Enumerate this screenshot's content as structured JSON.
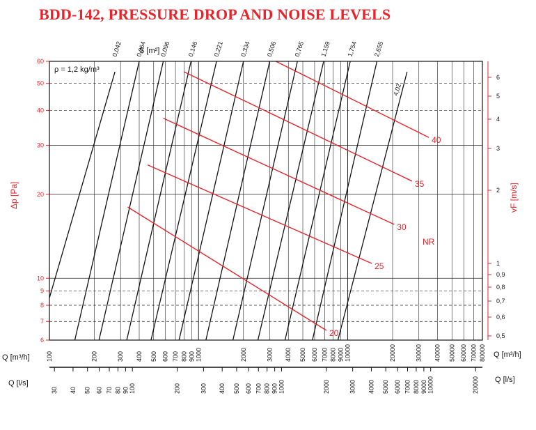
{
  "title": "BDD-142, PRESSURE DROP AND NOISE LEVELS",
  "density_note": "ρ = 1,2 kg/m³",
  "chart_data": {
    "type": "line",
    "scale": "log-log",
    "grid": true,
    "x_axis": {
      "unit_label": "Q [m³/h]",
      "range": [
        100,
        80000
      ],
      "ticks": [
        "100",
        "200",
        "300",
        "400",
        "500",
        "600",
        "700",
        "800",
        "900",
        "1000",
        "2000",
        "3000",
        "4000",
        "5000",
        "6000",
        "7000",
        "8000",
        "9000",
        "10000",
        "20000",
        "30000",
        "40000",
        "50000",
        "60000",
        "70000",
        "80000"
      ]
    },
    "x_axis_secondary": {
      "unit_label": "Q [l/s]",
      "ticks": [
        "30",
        "40",
        "50",
        "60",
        "70",
        "80",
        "90",
        "100",
        "200",
        "300",
        "400",
        "500",
        "600",
        "700",
        "800",
        "900",
        "1000",
        "2000",
        "3000",
        "4000",
        "5000",
        "6000",
        "7000",
        "8000",
        "9000",
        "10000",
        "20000"
      ]
    },
    "y_axis": {
      "label": "Δp [Pa]",
      "range": [
        6,
        60
      ],
      "ticks": [
        "6",
        "7",
        "8",
        "9",
        "10",
        "20",
        "30",
        "40",
        "50",
        "60"
      ]
    },
    "y_axis_right": {
      "label": "vF [m/s]",
      "ticks": [
        "0,5",
        "0,6",
        "0,7",
        "0,8",
        "0,9",
        "1",
        "2",
        "3",
        "4",
        "5",
        "6"
      ]
    },
    "s_axis": {
      "label": "S [m²]"
    },
    "series": [
      {
        "name": "0,042",
        "points": [
          [
            100,
            8.5
          ],
          [
            275,
            55
          ]
        ]
      },
      {
        "name": "0,064",
        "points": [
          [
            148,
            6
          ],
          [
            400,
            60
          ]
        ]
      },
      {
        "name": "0,096",
        "points": [
          [
            215,
            6
          ],
          [
            580,
            60
          ]
        ]
      },
      {
        "name": "0,146",
        "points": [
          [
            330,
            6
          ],
          [
            890,
            60
          ]
        ]
      },
      {
        "name": "0,221",
        "points": [
          [
            480,
            6
          ],
          [
            1320,
            60
          ]
        ]
      },
      {
        "name": "0,334",
        "points": [
          [
            740,
            6
          ],
          [
            2000,
            60
          ]
        ]
      },
      {
        "name": "0,506",
        "points": [
          [
            1120,
            6
          ],
          [
            3000,
            60
          ]
        ]
      },
      {
        "name": "0,765",
        "points": [
          [
            1700,
            6
          ],
          [
            4600,
            60
          ]
        ]
      },
      {
        "name": "1,159",
        "points": [
          [
            2500,
            6
          ],
          [
            6900,
            60
          ]
        ]
      },
      {
        "name": "1,754",
        "points": [
          [
            3800,
            6
          ],
          [
            10400,
            60
          ]
        ]
      },
      {
        "name": "2,655",
        "points": [
          [
            5800,
            6
          ],
          [
            15700,
            60
          ]
        ]
      },
      {
        "name": "4,02",
        "points": [
          [
            8600,
            6
          ],
          [
            25000,
            55
          ]
        ]
      }
    ],
    "nr_label": "NR",
    "nr_series": [
      {
        "name": "20",
        "points": [
          [
            335,
            18
          ],
          [
            7200,
            6.5
          ]
        ]
      },
      {
        "name": "25",
        "points": [
          [
            455,
            25.5
          ],
          [
            14500,
            11.3
          ]
        ]
      },
      {
        "name": "30",
        "points": [
          [
            580,
            37.5
          ],
          [
            20500,
            15.6
          ]
        ]
      },
      {
        "name": "35",
        "points": [
          [
            800,
            55
          ],
          [
            27000,
            22.3
          ]
        ]
      },
      {
        "name": "40",
        "points": [
          [
            3300,
            60
          ],
          [
            35000,
            32
          ]
        ]
      }
    ]
  }
}
